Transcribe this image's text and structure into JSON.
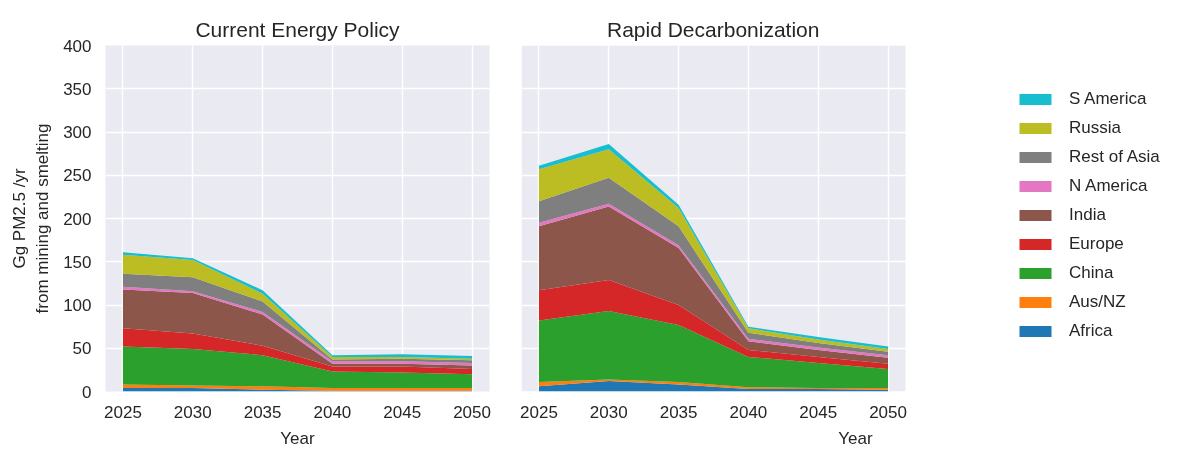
{
  "chart_data": [
    {
      "type": "area",
      "stacked": true,
      "title": "Current Energy Policy",
      "xlabel": "Year",
      "ylabel": "Gg PM2.5 /yr\nfrom mining and smelting",
      "x": [
        2025,
        2030,
        2035,
        2040,
        2045,
        2050
      ],
      "xlim": [
        2023.75,
        2051.25
      ],
      "xticks": [
        2025,
        2030,
        2035,
        2040,
        2045,
        2050
      ],
      "ylim": [
        0,
        400
      ],
      "yticks": [
        0,
        50,
        100,
        150,
        200,
        250,
        300,
        350,
        400
      ],
      "grid": true,
      "series": [
        {
          "color": "#1f77b4",
          "values": [
            4,
            4,
            2,
            1,
            1,
            1
          ]
        },
        {
          "color": "#ff7f0e",
          "values": [
            4,
            3,
            4,
            3,
            3,
            3
          ]
        },
        {
          "color": "#2ca02c",
          "values": [
            44,
            42,
            36,
            19,
            18,
            16
          ]
        },
        {
          "color": "#d62728",
          "values": [
            21,
            18,
            11,
            6,
            7,
            6
          ]
        },
        {
          "color": "#8c564b",
          "values": [
            45,
            47,
            36,
            3,
            3,
            4
          ]
        },
        {
          "color": "#e377c2",
          "values": [
            3,
            2,
            3,
            3,
            3,
            3
          ]
        },
        {
          "color": "#7f7f7f",
          "values": [
            15,
            16,
            12,
            2,
            3,
            3
          ]
        },
        {
          "color": "#bcbd22",
          "values": [
            22,
            20,
            9,
            3,
            2,
            2
          ]
        },
        {
          "color": "#17becf",
          "values": [
            3,
            2,
            4,
            2,
            3,
            3
          ]
        }
      ]
    },
    {
      "type": "area",
      "stacked": true,
      "title": "Rapid Decarbonization",
      "xlabel": "Year",
      "x": [
        2025,
        2030,
        2035,
        2040,
        2045,
        2050
      ],
      "xlim": [
        2023.75,
        2051.25
      ],
      "xticks": [
        2025,
        2030,
        2035,
        2040,
        2045,
        2050
      ],
      "ylim": [
        0,
        400
      ],
      "yticks": [
        0,
        50,
        100,
        150,
        200,
        250,
        300,
        350,
        400
      ],
      "grid": true,
      "tick_labels": "x",
      "legend": "right",
      "series": [
        {
          "name": "Africa",
          "color": "#1f77b4",
          "values": [
            6,
            12,
            8,
            3,
            3,
            2
          ]
        },
        {
          "name": "Aus/NZ",
          "color": "#ff7f0e",
          "values": [
            5,
            2,
            3,
            2,
            1,
            2
          ]
        },
        {
          "name": "China",
          "color": "#2ca02c",
          "values": [
            71,
            79,
            66,
            35,
            29,
            22
          ]
        },
        {
          "name": "Europe",
          "color": "#d62728",
          "values": [
            35,
            36,
            23,
            8,
            7,
            6
          ]
        },
        {
          "name": "India",
          "color": "#8c564b",
          "values": [
            74,
            85,
            66,
            10,
            8,
            7
          ]
        },
        {
          "name": "N America",
          "color": "#e377c2",
          "values": [
            4,
            3,
            3,
            3,
            3,
            3
          ]
        },
        {
          "name": "Rest of Asia",
          "color": "#7f7f7f",
          "values": [
            25,
            30,
            22,
            7,
            5,
            4
          ]
        },
        {
          "name": "Russia",
          "color": "#bcbd22",
          "values": [
            37,
            33,
            21,
            5,
            4,
            3
          ]
        },
        {
          "name": "S America",
          "color": "#17becf",
          "values": [
            4,
            6,
            4,
            2,
            3,
            3
          ]
        }
      ]
    }
  ]
}
